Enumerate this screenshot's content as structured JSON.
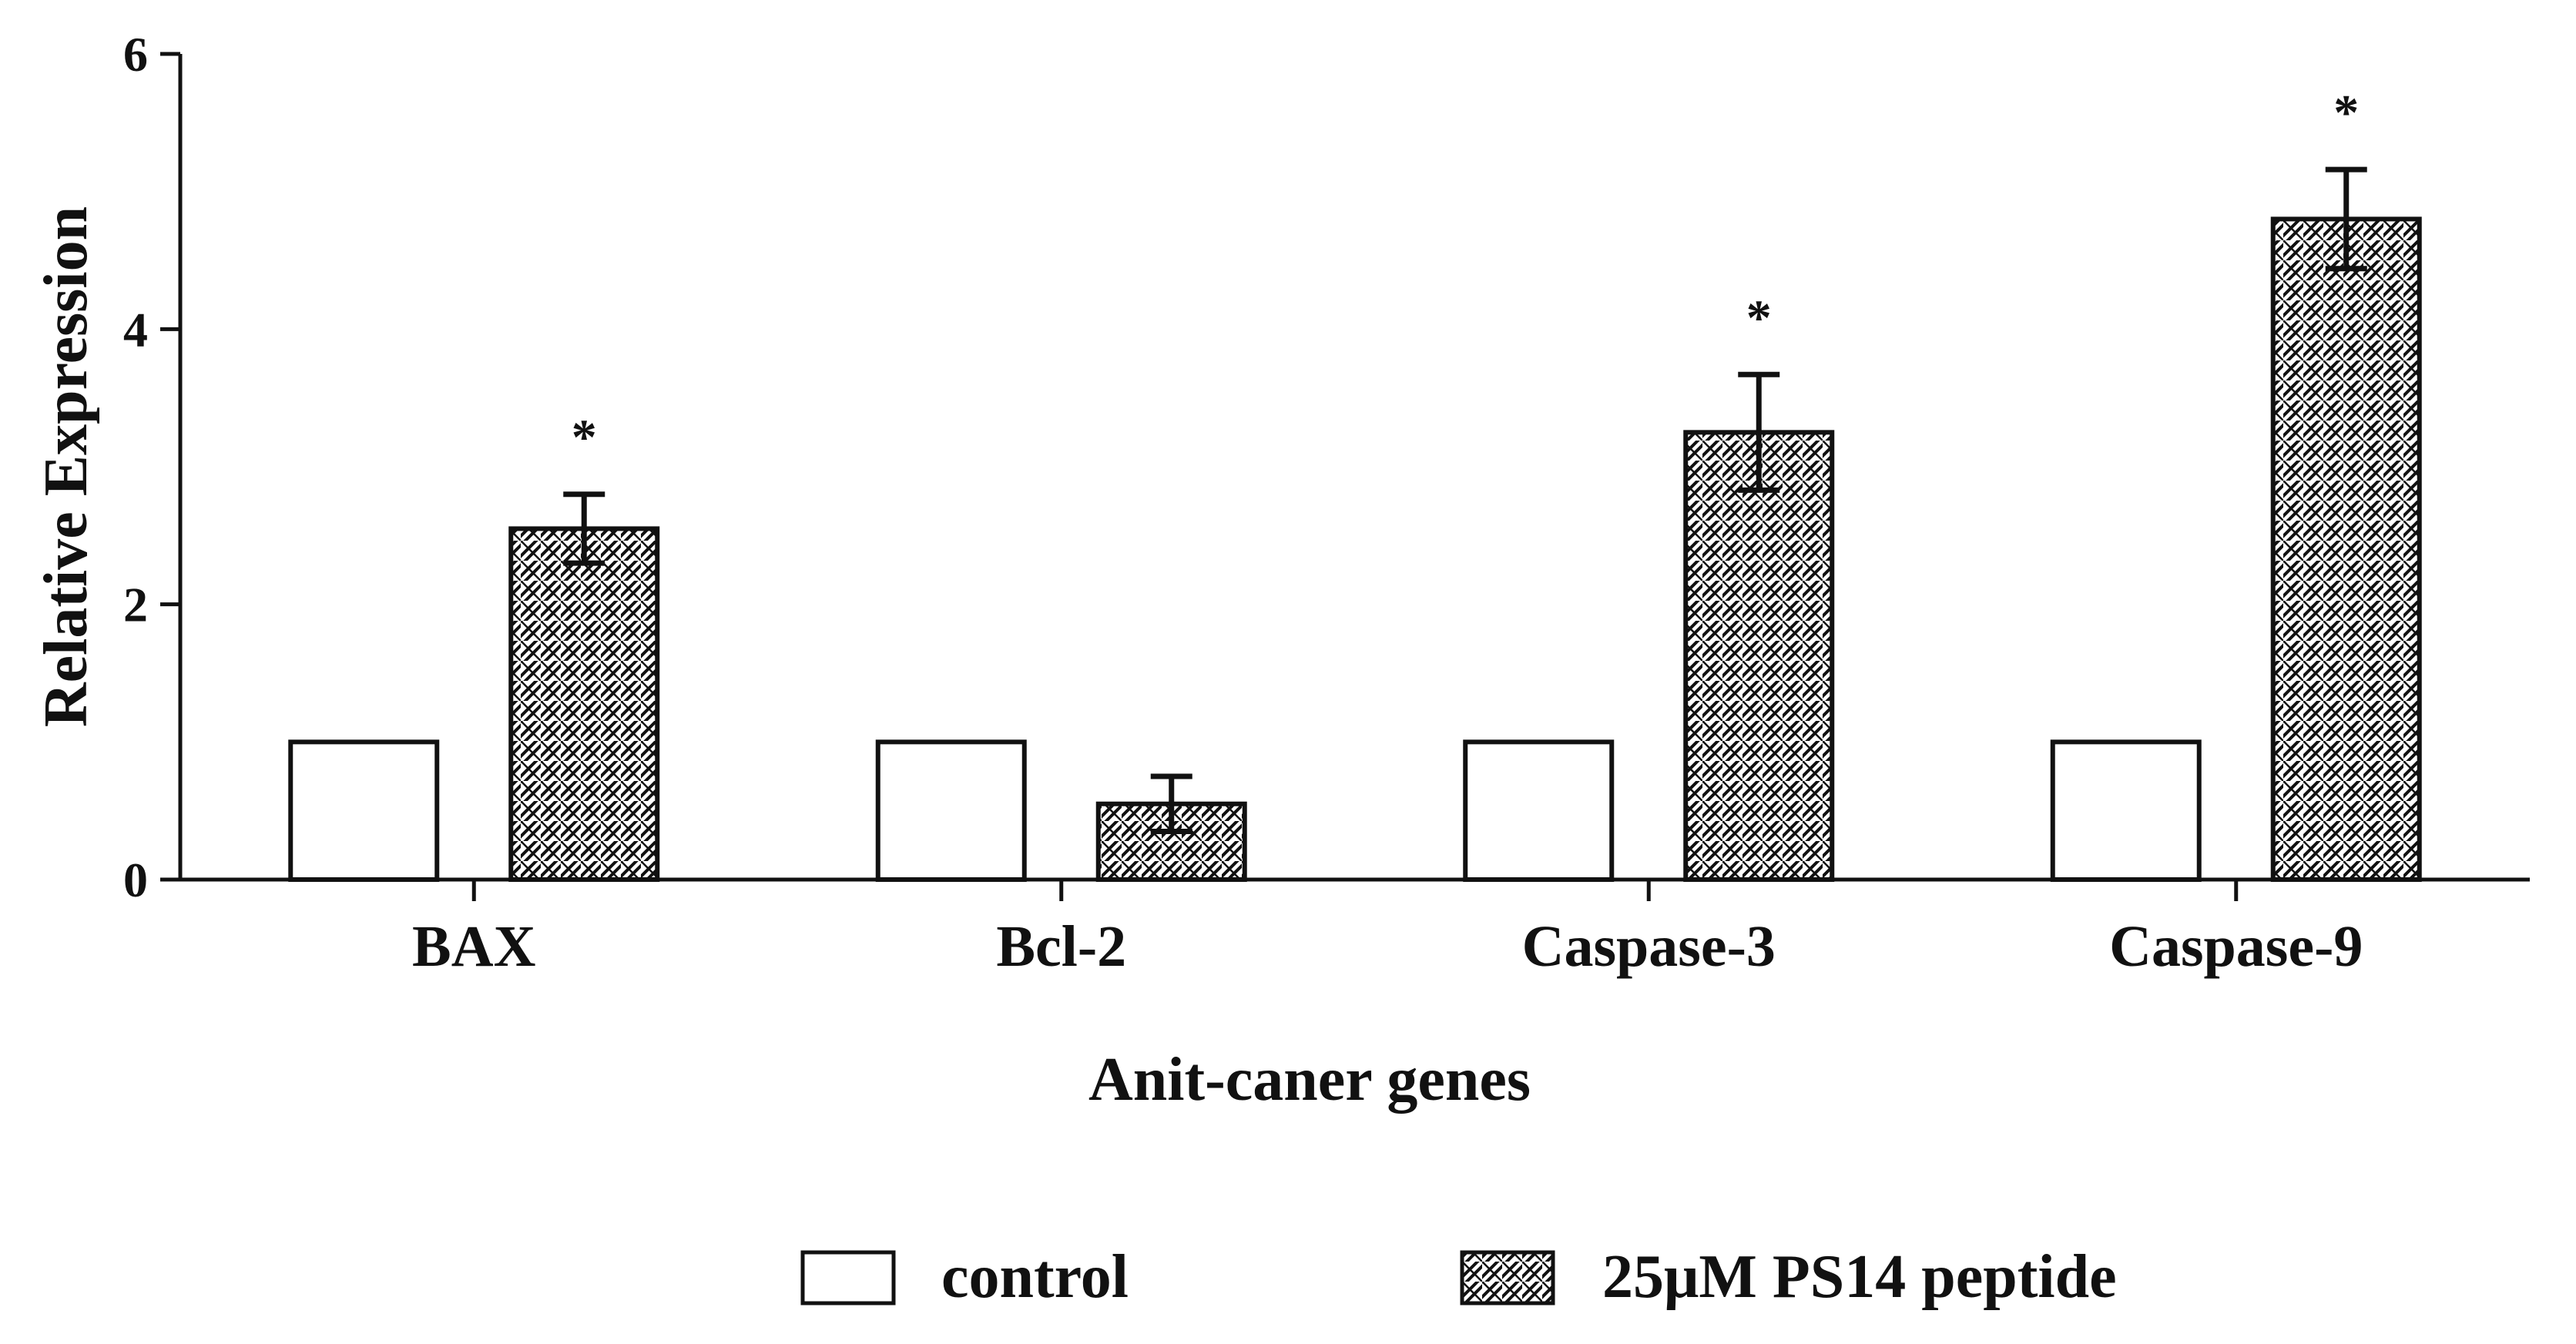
{
  "chart_data": {
    "type": "bar",
    "title": "",
    "xlabel": "Anit-caner genes",
    "ylabel": "Relative Expression",
    "ylim": [
      0,
      6
    ],
    "yticks": [
      "0",
      "2",
      "4",
      "6"
    ],
    "categories": [
      "BAX",
      "Bcl-2",
      "Caspase-3",
      "Caspase-9"
    ],
    "series": [
      {
        "name": "control",
        "values": [
          1,
          1,
          1,
          1
        ],
        "errors": [
          0,
          0,
          0,
          0
        ],
        "fill": "white"
      },
      {
        "name": "25μM PS14  peptide",
        "values": [
          2.55,
          0.55,
          3.25,
          4.8
        ],
        "errors": [
          0.25,
          0.2,
          0.42,
          0.36
        ],
        "fill": "hatch"
      }
    ],
    "significance": [
      "*",
      "",
      "*",
      "*"
    ],
    "grid": false,
    "legend_position": "bottom",
    "colors": {
      "axis": "#111111",
      "bar_edge": "#111111",
      "bar_fill": "#ffffff",
      "hatch": "#111111"
    }
  }
}
